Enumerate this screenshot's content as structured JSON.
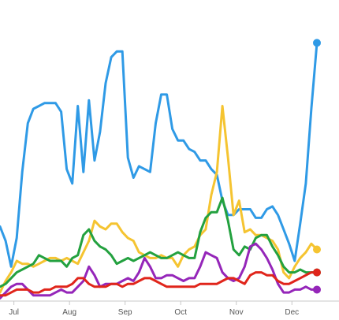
{
  "chart_data": {
    "type": "line",
    "title": "",
    "xlabel": "",
    "ylabel": "",
    "x_ticks": [
      "Jul",
      "Aug",
      "Sep",
      "Oct",
      "Nov",
      "Dec"
    ],
    "x_tick_positions": [
      2.5,
      12.5,
      22.5,
      32.5,
      42.5,
      52.5
    ],
    "x": [
      0,
      1,
      2,
      3,
      4,
      5,
      6,
      7,
      8,
      9,
      10,
      11,
      12,
      13,
      14,
      15,
      16,
      17,
      18,
      19,
      20,
      21,
      22,
      23,
      24,
      25,
      26,
      27,
      28,
      29,
      30,
      31,
      32,
      33,
      34,
      35,
      36,
      37,
      38,
      39,
      40,
      41,
      42,
      43,
      44,
      45,
      46,
      47,
      48,
      49,
      50,
      51,
      52,
      53,
      54,
      55,
      56,
      57
    ],
    "ylim": [
      0,
      100
    ],
    "grid": false,
    "legend": "none",
    "series": [
      {
        "color": "#2f9ae6",
        "values": [
          26,
          21,
          12,
          22,
          45,
          62,
          67,
          68,
          69,
          69,
          69,
          66,
          46,
          41,
          68,
          45,
          70,
          49,
          59,
          76,
          85,
          87,
          87,
          50,
          43,
          47,
          46,
          45,
          62,
          72,
          72,
          60,
          56,
          56,
          53,
          52,
          49,
          49,
          46,
          44,
          35,
          30,
          30,
          32,
          32,
          32,
          29,
          29,
          32,
          33,
          30,
          25,
          20,
          14,
          27,
          41,
          67,
          90
        ]
      },
      {
        "color": "#f5c431",
        "values": [
          3,
          7,
          10,
          14,
          13,
          13,
          12,
          13,
          14,
          15,
          15,
          14,
          15,
          14,
          13,
          17,
          21,
          28,
          26,
          25,
          27,
          27,
          24,
          22,
          21,
          17,
          16,
          15,
          15,
          16,
          15,
          15,
          12,
          16,
          18,
          19,
          23,
          25,
          37,
          45,
          68,
          50,
          30,
          35,
          24,
          25,
          23,
          23,
          22,
          21,
          18,
          10,
          8,
          12,
          15,
          17,
          20,
          18
        ]
      },
      {
        "color": "#23a13f",
        "values": [
          5,
          6,
          8,
          10,
          11,
          12,
          13,
          16,
          15,
          14,
          14,
          14,
          12,
          15,
          16,
          23,
          25,
          21,
          19,
          18,
          16,
          13,
          14,
          15,
          14,
          15,
          16,
          17,
          16,
          15,
          15,
          16,
          17,
          16,
          15,
          15,
          24,
          29,
          31,
          31,
          36,
          28,
          18,
          16,
          19,
          18,
          22,
          23,
          23,
          19,
          16,
          12,
          10,
          10,
          11,
          10,
          10,
          10
        ]
      },
      {
        "color": "#9526b9",
        "values": [
          1,
          3,
          5,
          6,
          6,
          4,
          2,
          2,
          2,
          2,
          3,
          4,
          3,
          3,
          5,
          7,
          12,
          9,
          5,
          6,
          6,
          6,
          7,
          8,
          7,
          10,
          15,
          12,
          8,
          8,
          9,
          9,
          8,
          7,
          8,
          8,
          12,
          17,
          16,
          15,
          10,
          8,
          7,
          8,
          12,
          19,
          20,
          18,
          15,
          11,
          6,
          3,
          3,
          4,
          4,
          5,
          4,
          4
        ]
      },
      {
        "color": "#e0251b",
        "values": [
          2,
          2,
          3,
          4,
          4,
          4,
          3,
          3,
          4,
          4,
          5,
          5,
          5,
          6,
          8,
          8,
          6,
          5,
          5,
          5,
          6,
          6,
          5,
          6,
          6,
          7,
          8,
          8,
          7,
          6,
          5,
          5,
          5,
          5,
          5,
          5,
          6,
          6,
          6,
          6,
          7,
          8,
          8,
          7,
          6,
          9,
          10,
          10,
          9,
          9,
          7,
          6,
          6,
          7,
          8,
          9,
          10,
          10
        ]
      }
    ]
  }
}
